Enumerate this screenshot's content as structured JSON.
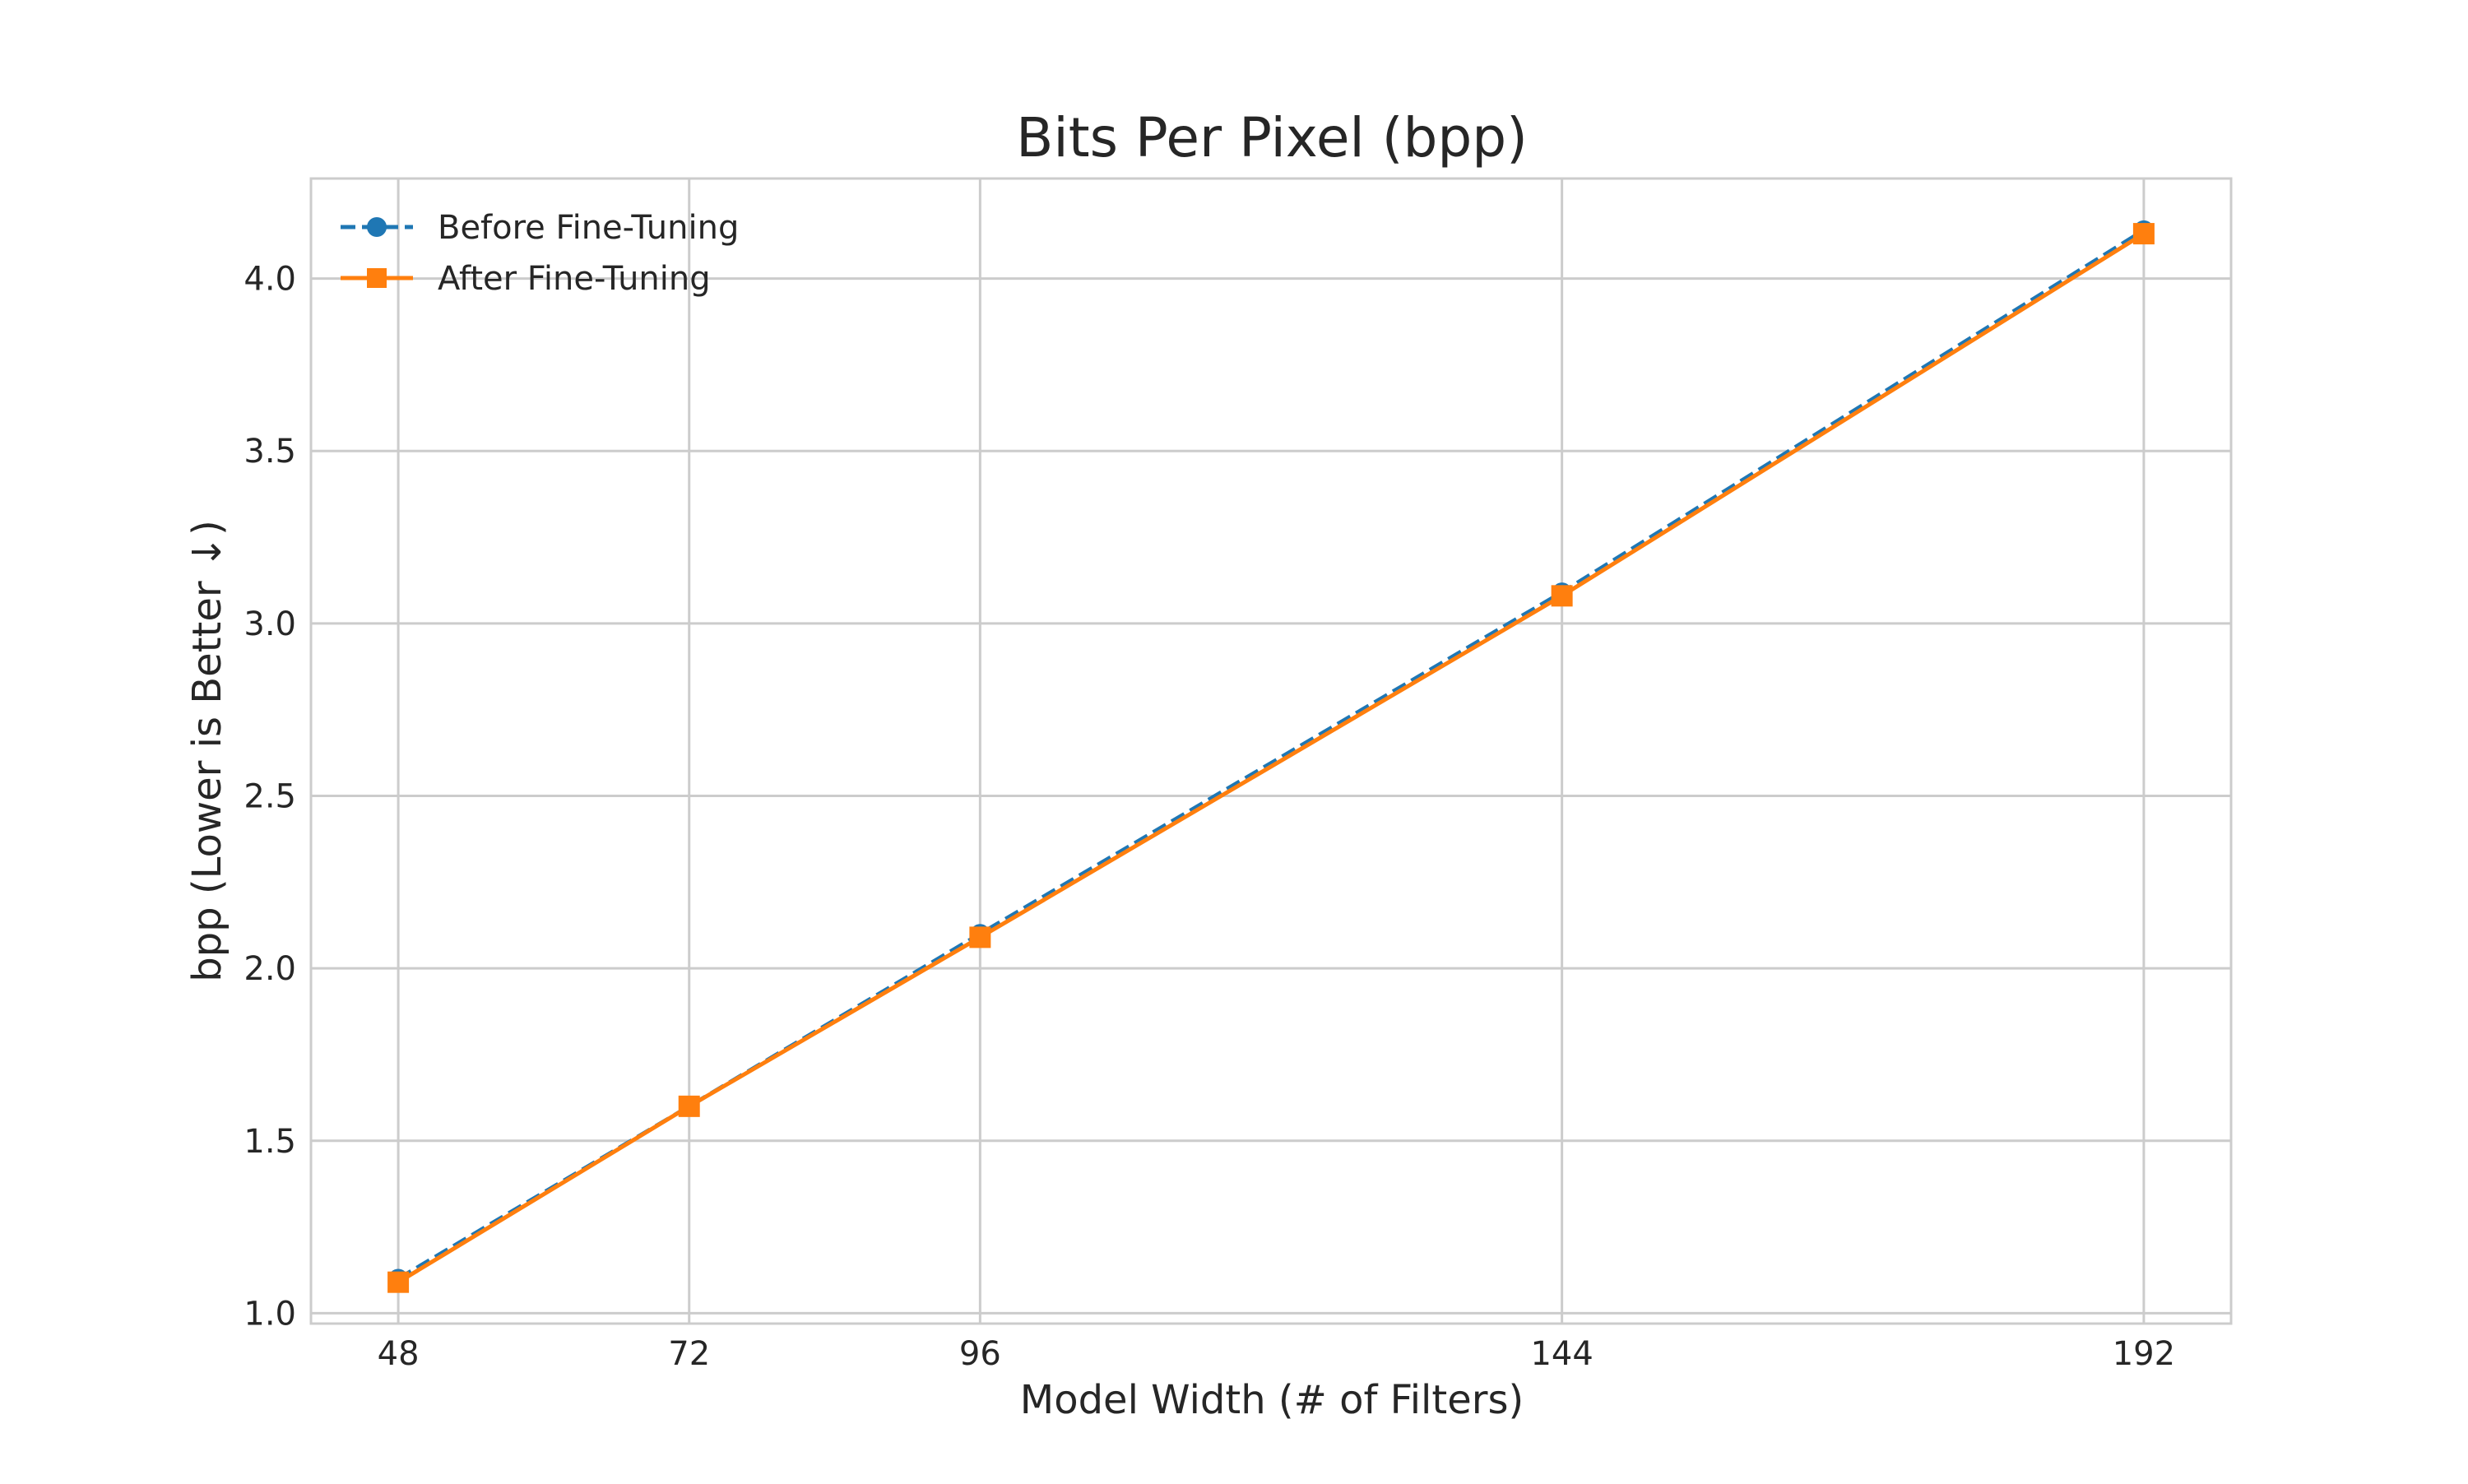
{
  "chart_data": {
    "type": "line",
    "title": "Bits Per Pixel (bpp)",
    "xlabel": "Model Width (# of Filters)",
    "ylabel": "bpp (Lower is Better ↓)",
    "x": [
      48,
      72,
      96,
      144,
      192
    ],
    "x_tick_labels": [
      "48",
      "72",
      "96",
      "144",
      "192"
    ],
    "y_tick_labels": [
      "1.0",
      "1.5",
      "2.0",
      "2.5",
      "3.0",
      "3.5",
      "4.0"
    ],
    "y_ticks": [
      1.0,
      1.5,
      2.0,
      2.5,
      3.0,
      3.5,
      4.0
    ],
    "xlim": [
      40.8,
      199.2
    ],
    "ylim": [
      0.97,
      4.29
    ],
    "grid": true,
    "legend_position": "upper-left",
    "series": [
      {
        "name": "Before Fine-Tuning",
        "values": [
          1.1,
          1.6,
          2.1,
          3.09,
          4.14
        ],
        "color": "#1f77b4",
        "line_style": "dashed",
        "marker": "circle"
      },
      {
        "name": "After Fine-Tuning",
        "values": [
          1.09,
          1.6,
          2.09,
          3.08,
          4.13
        ],
        "color": "#ff7f0e",
        "line_style": "solid",
        "marker": "square"
      }
    ]
  }
}
